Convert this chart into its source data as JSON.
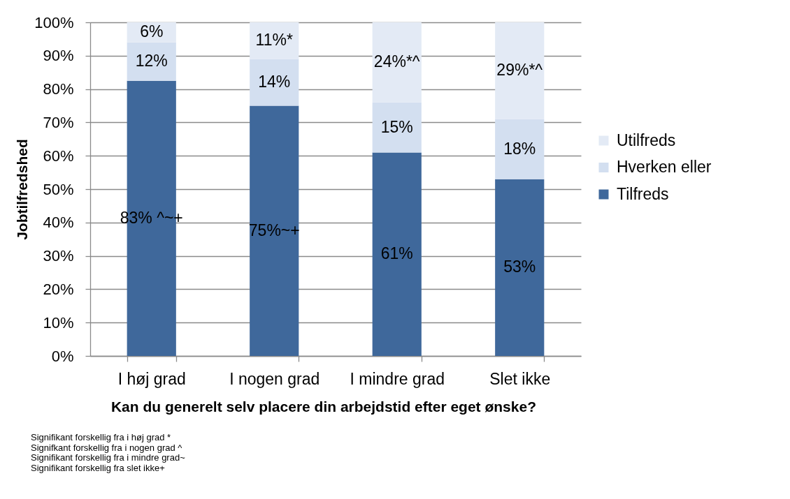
{
  "chart_data": {
    "type": "bar",
    "stacked": true,
    "ylabel": "Jobtilfredshed",
    "xlabel": "Kan du generelt selv placere din arbejdstid efter eget ønske?",
    "categories": [
      "I høj grad",
      "I nogen grad",
      "I mindre grad",
      "Slet ikke"
    ],
    "series": [
      {
        "name": "Tilfreds",
        "color": "#3f689b",
        "values": [
          82.5,
          75,
          61,
          53
        ],
        "value_labels": [
          "83% ^~+",
          "75%~+",
          "61%",
          "53%"
        ]
      },
      {
        "name": "Hverken eller",
        "color": "#d3dff0",
        "values": [
          11.5,
          14,
          15,
          18
        ],
        "value_labels": [
          "12%",
          "14%",
          "15%",
          "18%"
        ]
      },
      {
        "name": "Utilfreds",
        "color": "#e3eaf5",
        "values": [
          6,
          11,
          24,
          29
        ],
        "value_labels": [
          "6%",
          "11%*",
          "24%*^",
          "29%*^"
        ]
      }
    ],
    "ylim": [
      0,
      100
    ],
    "yticks": [
      {
        "value": 0,
        "label": "0%"
      },
      {
        "value": 10,
        "label": "10%"
      },
      {
        "value": 20,
        "label": "20%"
      },
      {
        "value": 30,
        "label": "30%"
      },
      {
        "value": 40,
        "label": "40%"
      },
      {
        "value": 50,
        "label": "50%"
      },
      {
        "value": 60,
        "label": "60%"
      },
      {
        "value": 70,
        "label": "70%"
      },
      {
        "value": 80,
        "label": "80%"
      },
      {
        "value": 90,
        "label": "90%"
      },
      {
        "value": 100,
        "label": "100%"
      }
    ],
    "grid": "y",
    "legend": "right",
    "annotations": [
      "Signifikant forskellig fra i høj grad *",
      "Signifkant forskellig fra i nogen grad ^",
      "Signifikant forskellig fra i mindre grad~",
      "Signifikant forskellig fra slet ikke+"
    ]
  }
}
